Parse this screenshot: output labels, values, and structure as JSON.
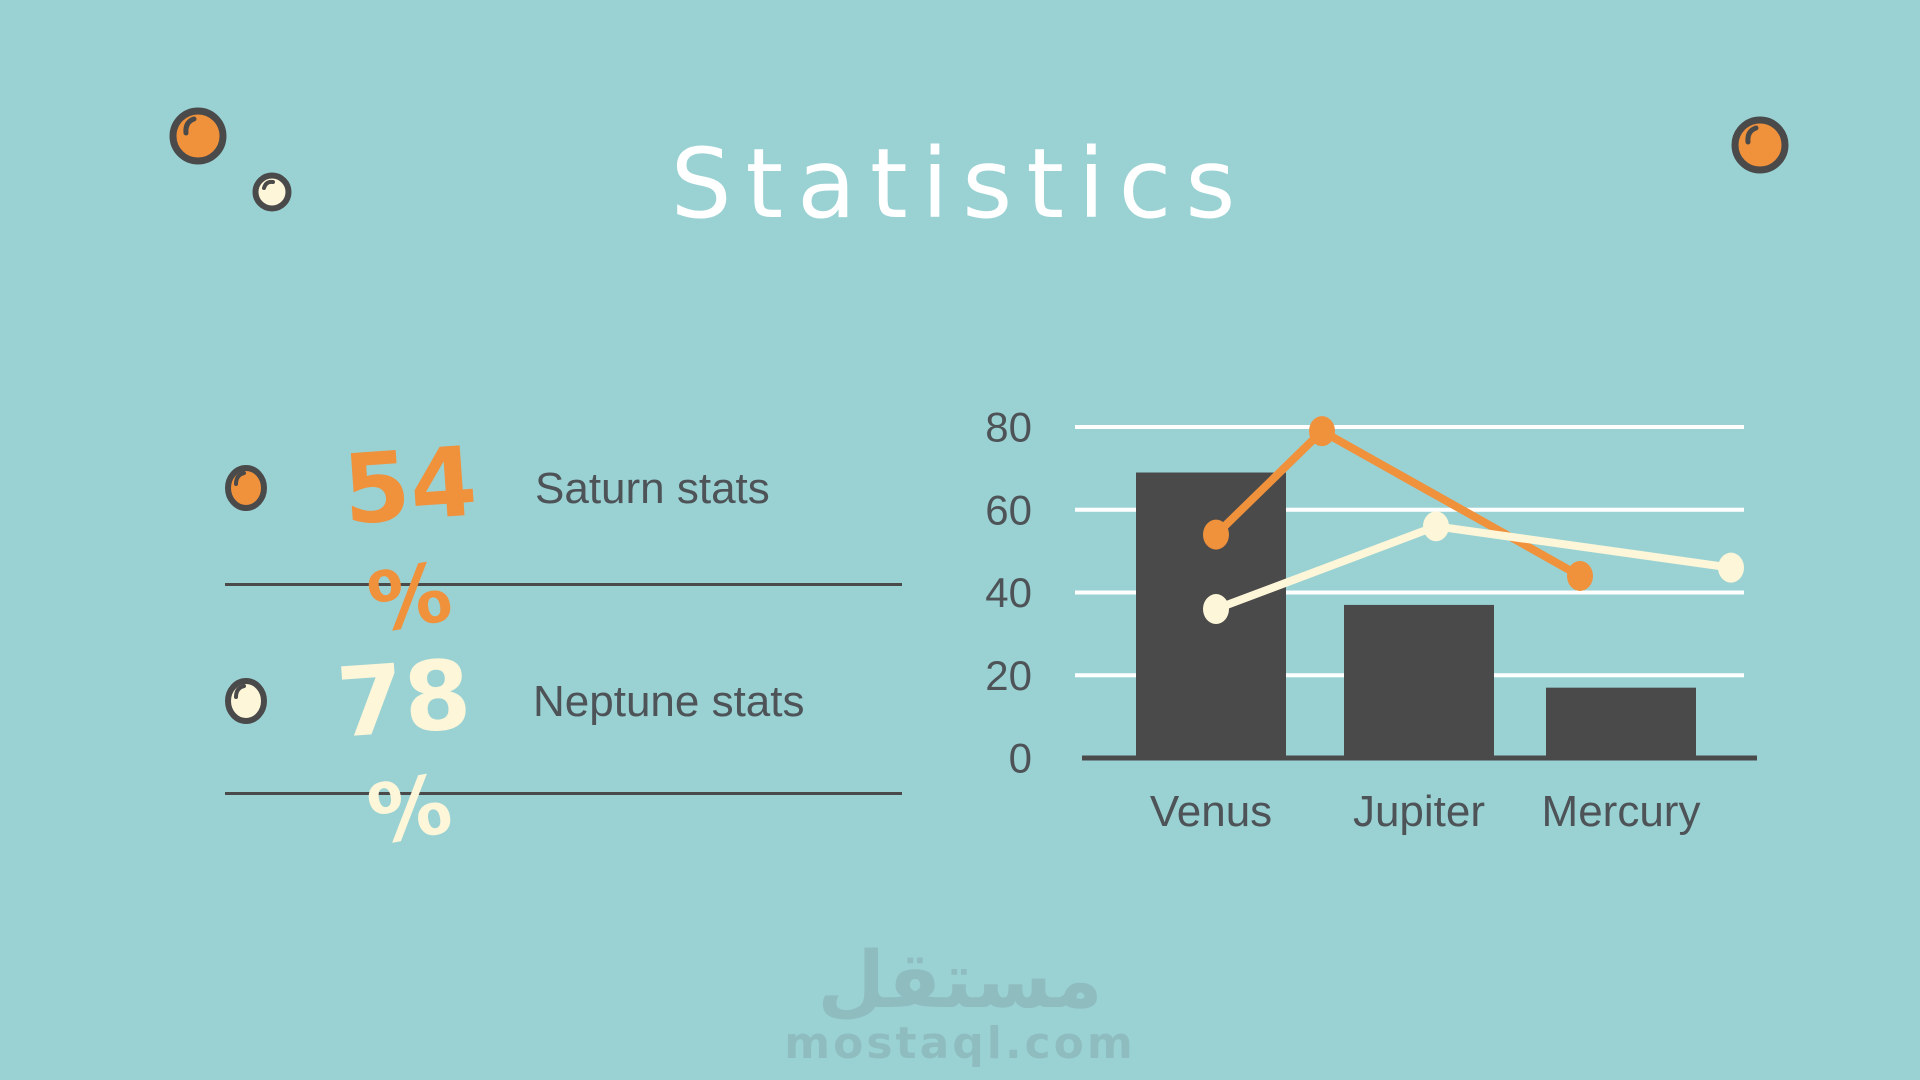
{
  "title": "Statistics",
  "stats": [
    {
      "value": "54",
      "unit": "%",
      "label": "Saturn stats",
      "color": "#f0913c"
    },
    {
      "value": "78",
      "unit": "%",
      "label": "Neptune stats",
      "color": "#fdf6d8"
    }
  ],
  "chart_data": {
    "type": "bar",
    "subtype": "combo bar + two line series",
    "categories": [
      "Venus",
      "Jupiter",
      "Mercury"
    ],
    "series": [
      {
        "name": "bars",
        "type": "bar",
        "color": "#4a4a4b",
        "values": [
          69,
          37,
          17
        ]
      },
      {
        "name": "orange-line",
        "type": "line",
        "color": "#f0913c",
        "values": [
          54,
          79,
          44
        ]
      },
      {
        "name": "cream-line",
        "type": "line",
        "color": "#fdf6d8",
        "values": [
          36,
          56,
          46
        ]
      }
    ],
    "title": "",
    "xlabel": "",
    "ylabel": "",
    "yticks": [
      0,
      20,
      40,
      60,
      80
    ],
    "ylim": [
      0,
      88
    ],
    "grid": "horizontal white gridlines at each y tick",
    "legend": "none",
    "tick_color": "#4d5357",
    "axis_color": "#4a4a4b",
    "gridline_color": "#ffffff"
  },
  "decorations": {
    "circles": [
      {
        "name": "top-left-orange",
        "fill": "#f0913c"
      },
      {
        "name": "top-left-cream",
        "fill": "#fdf6d8"
      },
      {
        "name": "top-right-orange",
        "fill": "#f0913c"
      }
    ],
    "outline_color": "#4a4a4b"
  },
  "watermark": {
    "arabic": "مستقل",
    "latin": "mostaql.com"
  },
  "colors": {
    "background": "#9ad2d4",
    "title": "#ffffff",
    "text_dark": "#4d5357",
    "orange": "#f0913c",
    "cream": "#fdf6d8",
    "bar": "#4a4a4b"
  }
}
